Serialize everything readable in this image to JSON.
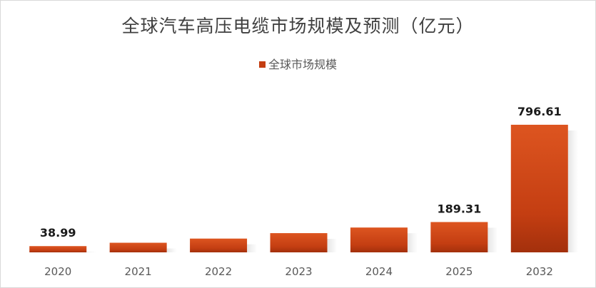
{
  "chart_data": {
    "type": "bar",
    "title": "全球汽车高压电缆市场规模及预测（亿元）",
    "legend": {
      "position": "top",
      "entries": [
        "全球市场规模"
      ]
    },
    "categories": [
      "2020",
      "2021",
      "2022",
      "2023",
      "2024",
      "2025",
      "2032"
    ],
    "series": [
      {
        "name": "全球市场规模",
        "values": [
          38.99,
          60,
          86,
          120,
          155,
          189.31,
          796.61
        ]
      }
    ],
    "data_labels": [
      "38.99",
      "",
      "",
      "",
      "",
      "189.31",
      "796.61"
    ],
    "xlabel": "",
    "ylabel": "",
    "ylim": [
      0,
      796.61
    ],
    "grid": false,
    "colors": {
      "bar_top": "#d94d1e",
      "bar_bottom": "#a3300c",
      "text": "#595959",
      "label": "#1a1a1a"
    }
  }
}
